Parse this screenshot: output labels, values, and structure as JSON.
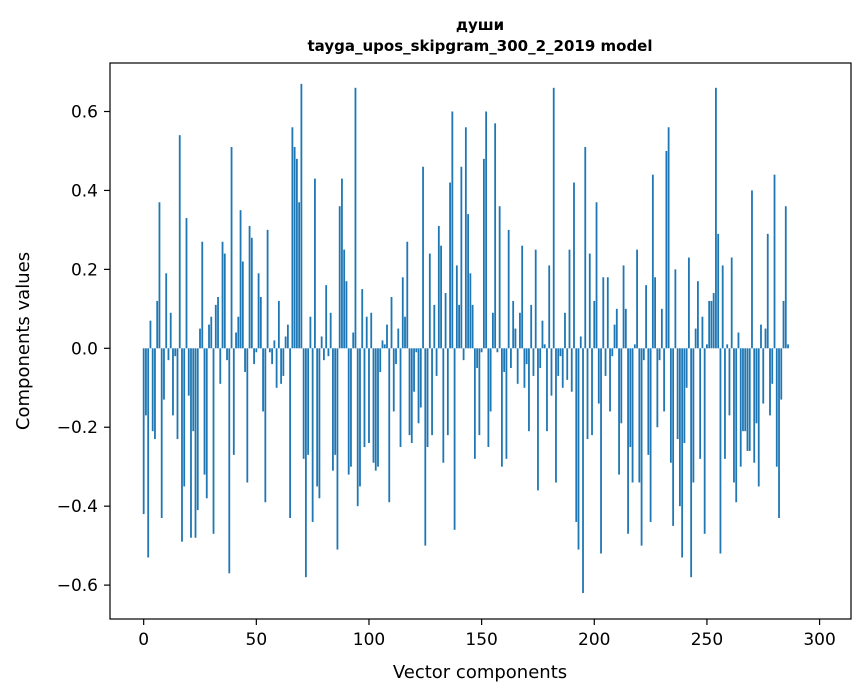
{
  "chart_data": {
    "type": "bar",
    "title": "души",
    "subtitle": "tayga_upos_skipgram_300_2_2019 model",
    "xlabel": "Vector components",
    "ylabel": "Components values",
    "xlim": [
      -14.95,
      313.95
    ],
    "ylim": [
      -0.6859,
      0.7229
    ],
    "xticks": [
      0,
      50,
      100,
      150,
      200,
      250,
      300
    ],
    "xtick_labels": [
      "0",
      "50",
      "100",
      "150",
      "200",
      "250",
      "300"
    ],
    "yticks": [
      -0.6,
      -0.4,
      -0.2,
      0.0,
      0.2,
      0.4,
      0.6
    ],
    "ytick_labels": [
      "−0.6",
      "−0.4",
      "−0.2",
      "0.0",
      "0.2",
      "0.4",
      "0.6"
    ],
    "bar_color": "#1f77b4",
    "values": [
      -0.42,
      -0.17,
      -0.53,
      0.07,
      -0.21,
      -0.23,
      0.12,
      0.37,
      -0.43,
      -0.13,
      0.19,
      -0.03,
      0.09,
      -0.17,
      -0.02,
      -0.23,
      0.54,
      -0.49,
      -0.35,
      0.33,
      -0.12,
      -0.48,
      -0.21,
      -0.48,
      -0.41,
      0.05,
      0.27,
      -0.32,
      -0.38,
      0.06,
      0.08,
      -0.47,
      0.11,
      0.13,
      -0.09,
      0.27,
      0.24,
      -0.03,
      -0.57,
      0.51,
      -0.27,
      0.04,
      0.08,
      0.35,
      0.22,
      -0.06,
      -0.34,
      0.31,
      0.28,
      -0.04,
      -0.01,
      0.19,
      0.13,
      -0.16,
      -0.39,
      0.3,
      -0.01,
      -0.04,
      0.02,
      -0.1,
      0.12,
      -0.09,
      -0.07,
      0.03,
      0.06,
      -0.43,
      0.56,
      0.51,
      0.48,
      0.37,
      0.67,
      -0.28,
      -0.58,
      -0.27,
      0.08,
      -0.44,
      0.43,
      -0.35,
      -0.38,
      0.03,
      -0.03,
      0.16,
      -0.02,
      0.09,
      -0.31,
      -0.27,
      -0.51,
      0.36,
      0.43,
      0.25,
      0.17,
      -0.32,
      -0.3,
      0.04,
      0.66,
      -0.4,
      -0.35,
      0.15,
      -0.25,
      0.08,
      -0.24,
      0.09,
      -0.29,
      -0.31,
      -0.3,
      -0.06,
      0.02,
      0.01,
      0.06,
      -0.39,
      0.13,
      -0.16,
      -0.04,
      0.05,
      -0.25,
      0.18,
      0.08,
      0.27,
      -0.22,
      -0.24,
      -0.11,
      -0.01,
      -0.19,
      -0.15,
      0.46,
      -0.5,
      -0.25,
      0.24,
      -0.22,
      0.11,
      -0.07,
      0.31,
      0.26,
      -0.29,
      0.14,
      -0.22,
      0.42,
      0.6,
      -0.46,
      0.21,
      0.11,
      0.46,
      -0.03,
      0.56,
      0.34,
      0.19,
      0.11,
      -0.28,
      -0.05,
      -0.22,
      -0.01,
      0.48,
      0.6,
      -0.25,
      -0.16,
      0.09,
      0.57,
      -0.01,
      0.36,
      -0.3,
      -0.06,
      -0.28,
      0.3,
      -0.05,
      0.12,
      0.05,
      -0.09,
      0.09,
      0.26,
      -0.1,
      -0.04,
      -0.21,
      0.11,
      -0.07,
      0.25,
      -0.36,
      -0.05,
      0.07,
      0.01,
      -0.21,
      0.21,
      -0.12,
      0.66,
      -0.34,
      -0.07,
      -0.02,
      -0.1,
      0.09,
      -0.08,
      0.25,
      -0.11,
      0.42,
      -0.44,
      -0.51,
      0.03,
      -0.62,
      0.51,
      -0.23,
      0.24,
      -0.22,
      0.12,
      0.37,
      -0.14,
      -0.52,
      0.18,
      -0.07,
      0.18,
      -0.16,
      -0.02,
      0.06,
      0.1,
      -0.32,
      -0.19,
      0.21,
      0.1,
      -0.47,
      -0.25,
      -0.34,
      0.01,
      0.25,
      -0.34,
      -0.5,
      -0.03,
      0.16,
      -0.27,
      -0.44,
      0.44,
      0.18,
      -0.2,
      -0.03,
      0.1,
      -0.16,
      0.5,
      0.56,
      -0.29,
      -0.45,
      0.2,
      -0.23,
      -0.4,
      -0.53,
      -0.24,
      -0.1,
      0.23,
      -0.58,
      -0.34,
      0.05,
      0.17,
      -0.28,
      0.08,
      -0.47,
      0.01,
      0.12,
      0.12,
      0.14,
      0.66,
      0.29,
      -0.52,
      0.21,
      -0.28,
      0.01,
      -0.17,
      0.23,
      -0.34,
      -0.39,
      0.04,
      -0.3,
      -0.21,
      -0.21,
      -0.26,
      -0.26,
      0.4,
      -0.29,
      -0.19,
      -0.35,
      0.06,
      -0.14,
      0.05,
      0.29,
      -0.17,
      -0.09,
      0.44,
      -0.3,
      -0.43,
      -0.13,
      0.12,
      0.36,
      0.01
    ]
  }
}
